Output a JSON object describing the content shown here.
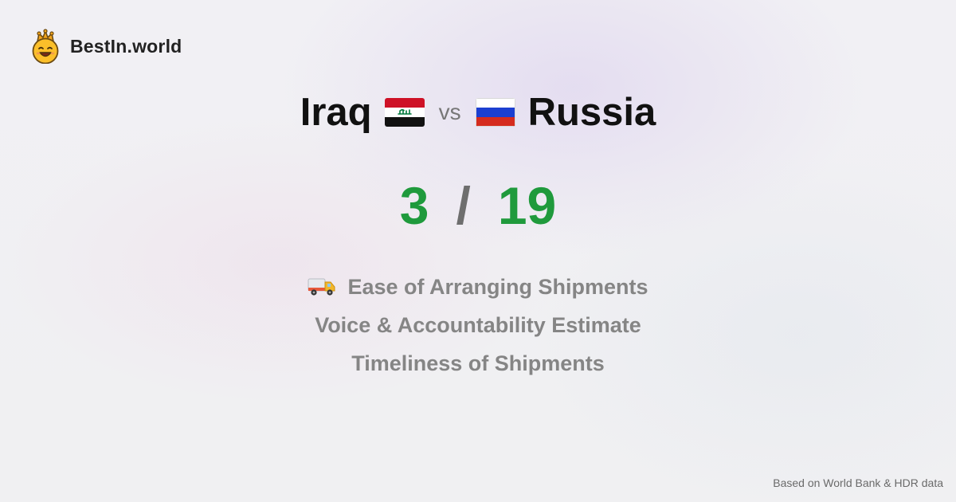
{
  "brand": {
    "name": "BestIn.world",
    "icon": "crowned-smiley-icon"
  },
  "comparison": {
    "left_country": "Iraq",
    "left_flag": "iraq-flag-icon",
    "vs_label": "vs",
    "right_country": "Russia",
    "right_flag": "russia-flag-icon"
  },
  "score": {
    "left": "3",
    "separator": "/",
    "right": "19",
    "color": "#1f9a3c"
  },
  "metrics": [
    {
      "label": "Ease of Arranging Shipments",
      "icon": "truck-icon"
    },
    {
      "label": "Voice & Accountability Estimate"
    },
    {
      "label": "Timeliness of Shipments"
    }
  ],
  "footer": {
    "source": "Based on World Bank & HDR data"
  }
}
